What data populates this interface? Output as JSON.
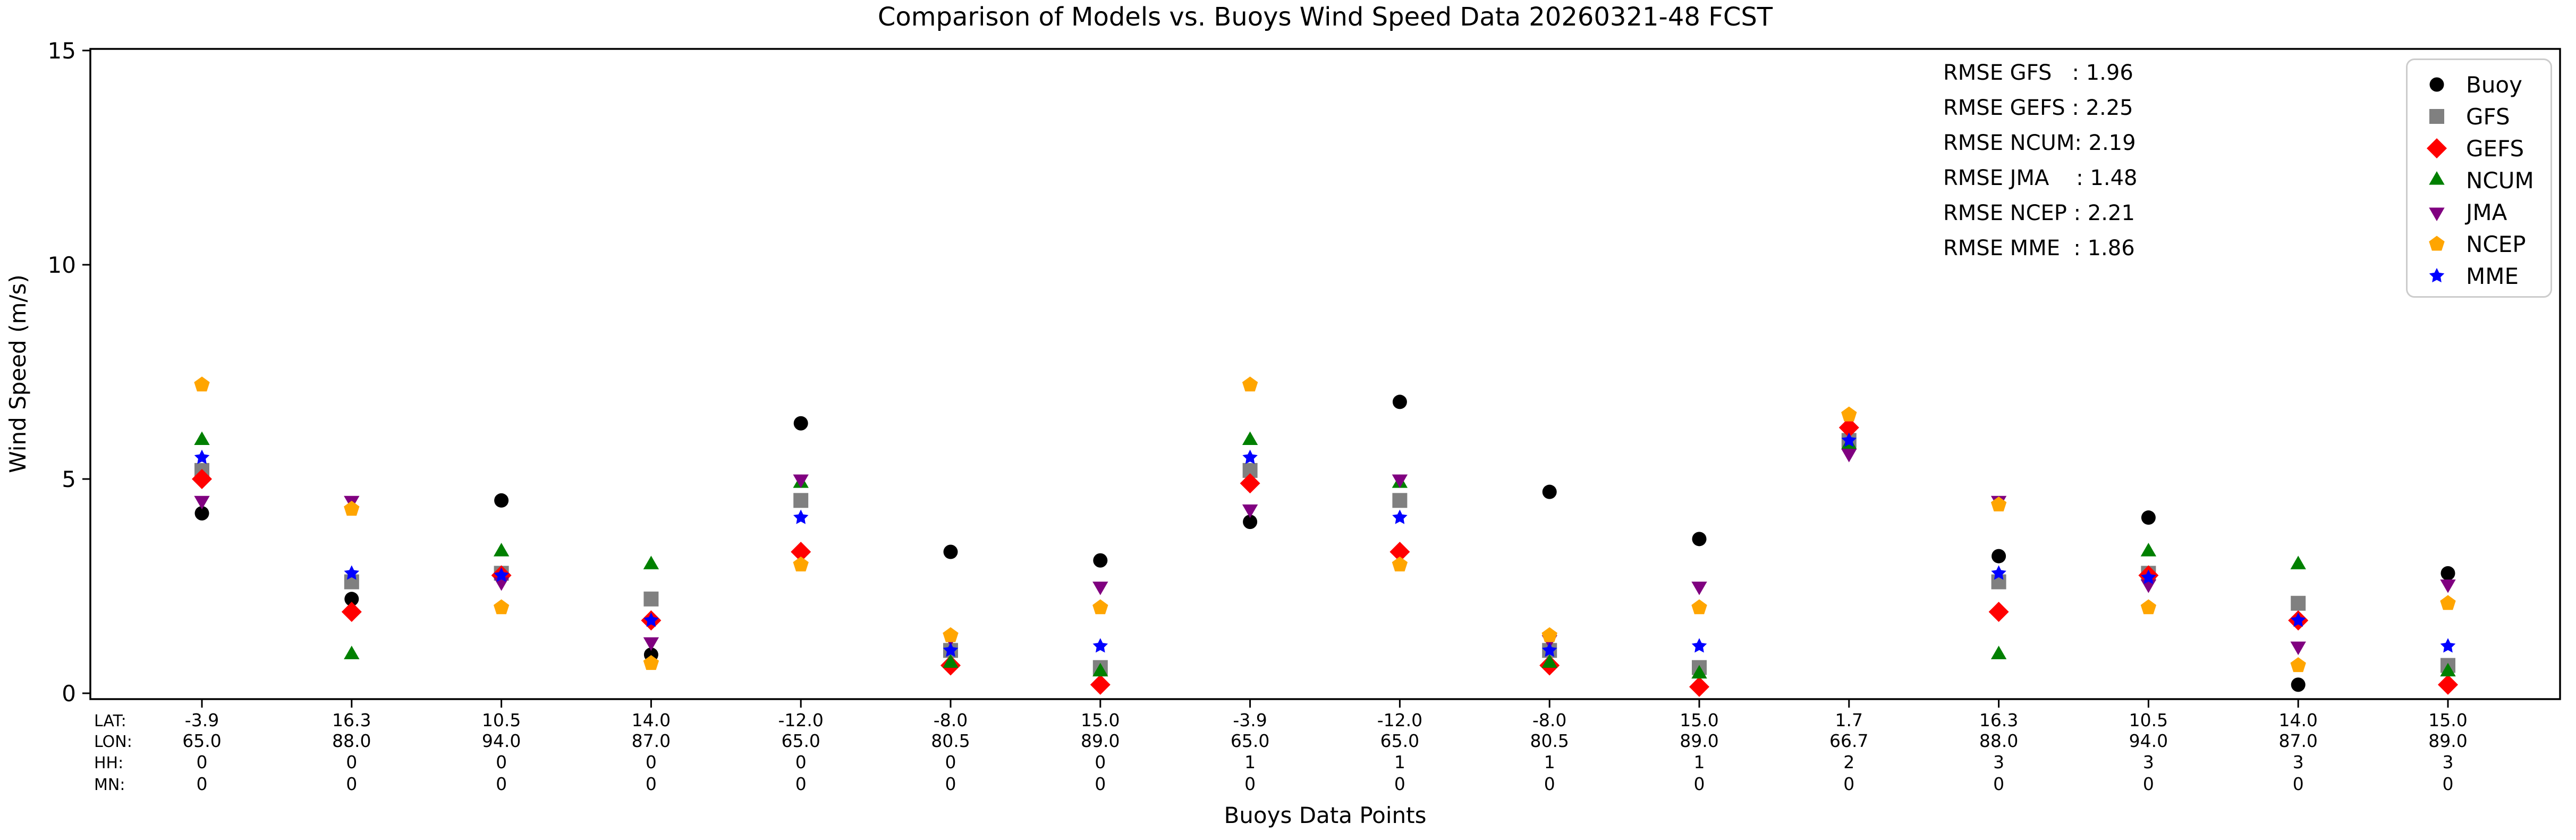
{
  "title": "Comparison of Models vs. Buoys Wind Speed Data 20260321-48 FCST",
  "axes": {
    "ylabel": "Wind Speed (m/s)",
    "xlabel": "Buoys Data Points",
    "yticks": [
      "0",
      "5",
      "10",
      "15"
    ],
    "row_labels": [
      "LAT:",
      "LON:",
      "HH:",
      "MN:"
    ]
  },
  "rmse": {
    "entries": [
      {
        "model": "GFS",
        "value": "1.96"
      },
      {
        "model": "GEFS",
        "value": "2.25"
      },
      {
        "model": "NCUM",
        "value": "2.19"
      },
      {
        "model": "JMA",
        "value": "1.48"
      },
      {
        "model": "NCEP",
        "value": "2.21"
      },
      {
        "model": "MME",
        "value": "1.86"
      }
    ],
    "lines": [
      "RMSE GFS   : 1.96",
      "RMSE GEFS : 2.25",
      "RMSE NCUM: 2.19",
      "RMSE JMA    : 1.48",
      "RMSE NCEP : 2.21",
      "RMSE MME  : 1.86"
    ]
  },
  "chart_data": {
    "type": "scatter",
    "title": "Comparison of Models vs. Buoys Wind Speed Data 20260321-48 FCST",
    "xlabel": "Buoys Data Points",
    "ylabel": "Wind Speed (m/s)",
    "ylim": [
      0,
      15
    ],
    "yticks": [
      0,
      5,
      10,
      15
    ],
    "grid": false,
    "legend_position": "upper right",
    "points": [
      {
        "lat": "-3.9",
        "lon": "65.0",
        "hh": "0",
        "mn": "0"
      },
      {
        "lat": "16.3",
        "lon": "88.0",
        "hh": "0",
        "mn": "0"
      },
      {
        "lat": "10.5",
        "lon": "94.0",
        "hh": "0",
        "mn": "0"
      },
      {
        "lat": "14.0",
        "lon": "87.0",
        "hh": "0",
        "mn": "0"
      },
      {
        "lat": "-12.0",
        "lon": "65.0",
        "hh": "0",
        "mn": "0"
      },
      {
        "lat": "-8.0",
        "lon": "80.5",
        "hh": "0",
        "mn": "0"
      },
      {
        "lat": "15.0",
        "lon": "89.0",
        "hh": "0",
        "mn": "0"
      },
      {
        "lat": "-3.9",
        "lon": "65.0",
        "hh": "1",
        "mn": "0"
      },
      {
        "lat": "-12.0",
        "lon": "65.0",
        "hh": "1",
        "mn": "0"
      },
      {
        "lat": "-8.0",
        "lon": "80.5",
        "hh": "1",
        "mn": "0"
      },
      {
        "lat": "15.0",
        "lon": "89.0",
        "hh": "1",
        "mn": "0"
      },
      {
        "lat": "1.7",
        "lon": "66.7",
        "hh": "2",
        "mn": "0"
      },
      {
        "lat": "16.3",
        "lon": "88.0",
        "hh": "3",
        "mn": "0"
      },
      {
        "lat": "10.5",
        "lon": "94.0",
        "hh": "3",
        "mn": "0"
      },
      {
        "lat": "14.0",
        "lon": "87.0",
        "hh": "3",
        "mn": "0"
      },
      {
        "lat": "15.0",
        "lon": "89.0",
        "hh": "3",
        "mn": "0"
      }
    ],
    "series": [
      {
        "name": "Buoy",
        "marker": "circle",
        "color": "#000000",
        "values": [
          4.2,
          2.2,
          4.5,
          0.9,
          6.3,
          3.3,
          3.1,
          4.0,
          6.8,
          4.7,
          3.6,
          5.8,
          3.2,
          4.1,
          0.2,
          2.8
        ]
      },
      {
        "name": "GFS",
        "marker": "square",
        "color": "#808080",
        "values": [
          5.2,
          2.6,
          2.8,
          2.2,
          4.5,
          1.0,
          0.6,
          5.2,
          4.5,
          1.0,
          0.6,
          5.9,
          2.6,
          2.8,
          2.1,
          0.65
        ]
      },
      {
        "name": "GEFS",
        "marker": "diamond",
        "color": "#ff0000",
        "values": [
          5.0,
          1.9,
          2.75,
          1.7,
          3.3,
          0.65,
          0.2,
          4.9,
          3.3,
          0.65,
          0.15,
          6.2,
          1.9,
          2.75,
          1.7,
          0.2
        ]
      },
      {
        "name": "NCUM",
        "marker": "triangle-up",
        "color": "#008000",
        "values": [
          5.9,
          0.9,
          3.3,
          3.0,
          4.9,
          0.7,
          0.5,
          5.9,
          4.9,
          0.7,
          0.45,
          5.8,
          0.9,
          3.3,
          3.0,
          0.5
        ]
      },
      {
        "name": "JMA",
        "marker": "triangle-down",
        "color": "#800080",
        "values": [
          4.5,
          4.5,
          2.6,
          1.2,
          5.0,
          1.3,
          2.5,
          4.3,
          5.0,
          1.25,
          2.5,
          5.6,
          4.5,
          2.55,
          1.1,
          2.55
        ]
      },
      {
        "name": "NCEP",
        "marker": "pentagon",
        "color": "#ffa500",
        "values": [
          7.2,
          4.3,
          2.0,
          0.7,
          3.0,
          1.35,
          2.0,
          7.2,
          3.0,
          1.35,
          2.0,
          6.5,
          4.4,
          2.0,
          0.65,
          2.1
        ]
      },
      {
        "name": "MME",
        "marker": "star",
        "color": "#0000ff",
        "values": [
          5.5,
          2.8,
          2.75,
          1.7,
          4.1,
          1.0,
          1.1,
          5.5,
          4.1,
          1.0,
          1.1,
          5.9,
          2.8,
          2.7,
          1.7,
          1.1
        ]
      }
    ]
  }
}
